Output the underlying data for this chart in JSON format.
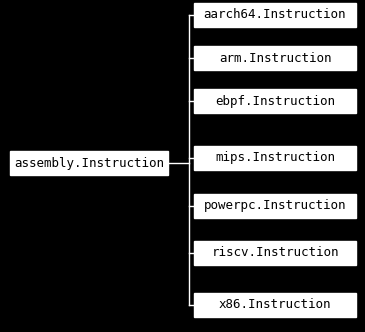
{
  "background_color": "#000000",
  "box_facecolor": "#ffffff",
  "box_edgecolor": "#ffffff",
  "text_color": "#000000",
  "line_color": "#ffffff",
  "parent_label": "assembly.Instruction",
  "children": [
    "aarch64.Instruction",
    "arm.Instruction",
    "ebpf.Instruction",
    "mips.Instruction",
    "powerpc.Instruction",
    "riscv.Instruction",
    "x86.Instruction"
  ],
  "font_size": 9,
  "font_family": "DejaVu Sans Mono"
}
